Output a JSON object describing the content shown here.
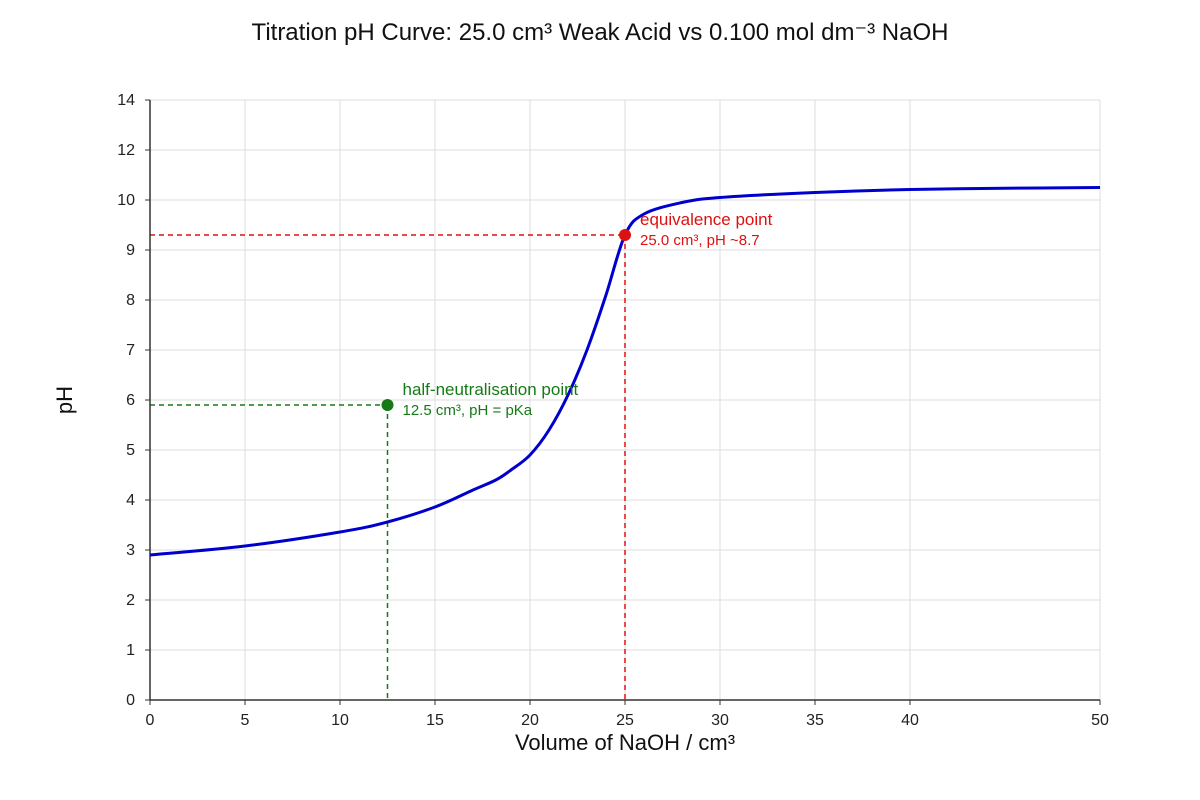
{
  "chart_data": {
    "type": "line",
    "title": "Titration pH Curve: 25.0 cm³ Weak Acid vs 0.100 mol dm⁻³ NaOH",
    "xlabel": "Volume of NaOH / cm³",
    "ylabel": "pH",
    "xlim": [
      0,
      50
    ],
    "ylim": [
      0,
      14
    ],
    "x_ticks": [
      "0",
      "5",
      "10",
      "15",
      "20",
      "25",
      "30",
      "35",
      "40",
      "50"
    ],
    "x_tick_values": [
      0,
      5,
      10,
      15,
      20,
      25,
      30,
      35,
      40,
      50
    ],
    "y_ticks": [
      "0",
      "1",
      "2",
      "3",
      "4",
      "5",
      "6",
      "7",
      "8",
      "9",
      "10",
      "12",
      "14"
    ],
    "y_tick_values": [
      0,
      1,
      2,
      3,
      4,
      5,
      6,
      7,
      8,
      9,
      10,
      12,
      14
    ],
    "grid": true,
    "series": [
      {
        "color": "#0000cc",
        "points": [
          [
            0,
            2.9
          ],
          [
            5,
            3.08
          ],
          [
            10,
            3.36
          ],
          [
            12.5,
            3.56
          ],
          [
            15,
            3.86
          ],
          [
            17,
            4.2
          ],
          [
            18.2,
            4.4
          ],
          [
            19,
            4.6
          ],
          [
            20,
            4.9
          ],
          [
            21,
            5.4
          ],
          [
            22,
            6.1
          ],
          [
            23,
            7.0
          ],
          [
            24,
            8.1
          ],
          [
            25,
            9.3
          ],
          [
            26,
            9.72
          ],
          [
            28,
            9.95
          ],
          [
            30,
            10.1
          ],
          [
            35,
            10.3
          ],
          [
            40,
            10.42
          ],
          [
            45,
            10.47
          ],
          [
            50,
            10.5
          ]
        ]
      }
    ],
    "annotations": [
      {
        "name": "half-neutralisation",
        "x": 12.5,
        "y": 5.9,
        "label": "half-neutralisation point",
        "sublabel": "12.5 cm³, pH = pKa",
        "color": "#157a15"
      },
      {
        "name": "equivalence",
        "x": 25,
        "y": 9.3,
        "label": "equivalence point",
        "sublabel": "25.0 cm³, pH ~8.7",
        "color": "#dd1111"
      }
    ]
  }
}
